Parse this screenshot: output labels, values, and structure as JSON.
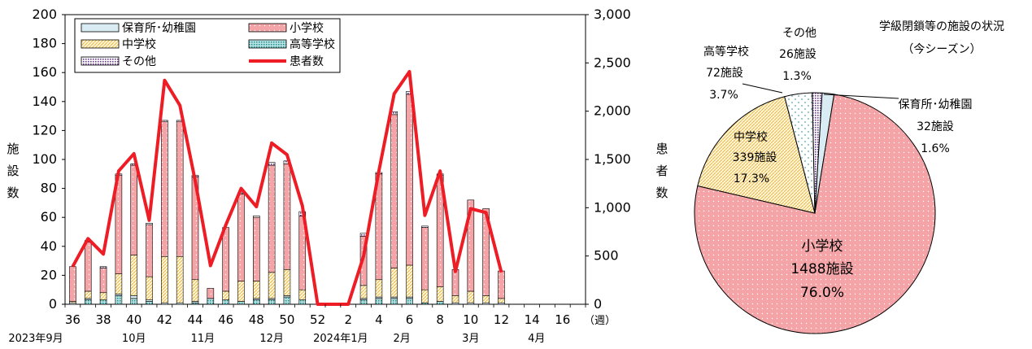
{
  "chart_data": [
    {
      "type": "bar",
      "stacked": true,
      "xlabel": "（週）",
      "ylabel": "施設数",
      "y2label": "患者数",
      "ylim": [
        0,
        200
      ],
      "y2lim": [
        0,
        3000
      ],
      "yticks": [
        "0",
        "20",
        "40",
        "60",
        "80",
        "100",
        "120",
        "140",
        "160",
        "180",
        "200"
      ],
      "y2ticks": [
        "0",
        "500",
        "1,000",
        "1,500",
        "2,000",
        "2,500",
        "3,000"
      ],
      "weeks": [
        36,
        37,
        38,
        39,
        40,
        41,
        42,
        43,
        44,
        45,
        46,
        47,
        48,
        49,
        50,
        51,
        52,
        1,
        2,
        3,
        4,
        5,
        6,
        7,
        8,
        9,
        10,
        11,
        12,
        13,
        14,
        15,
        16,
        17
      ],
      "week_tick_labels": [
        "36",
        "38",
        "40",
        "42",
        "44",
        "46",
        "48",
        "50",
        "52",
        "2",
        "4",
        "6",
        "8",
        "10",
        "12",
        "14",
        "16"
      ],
      "month_labels": [
        "2023年9月",
        "10月",
        "11月",
        "12月",
        "2024年1月",
        "2月",
        "3月",
        "4月"
      ],
      "legend": {
        "nursery": "保育所･幼稚園",
        "elementary": "小学校",
        "junior": "中学校",
        "high": "高等学校",
        "other": "その他",
        "patients": "患者数"
      },
      "series": [
        {
          "name": "保育所･幼稚園",
          "values": [
            1,
            1,
            0,
            1,
            2,
            1,
            1,
            1,
            1,
            0,
            0,
            0,
            1,
            1,
            1,
            0,
            0,
            0,
            0,
            1,
            1,
            1,
            1,
            0,
            0,
            1,
            1,
            1,
            1,
            0,
            0,
            0,
            0,
            0
          ]
        },
        {
          "name": "小学校",
          "values": [
            24,
            34,
            17,
            68,
            62,
            36,
            93,
            93,
            71,
            7,
            44,
            60,
            44,
            74,
            73,
            51,
            0,
            0,
            0,
            34,
            73,
            106,
            118,
            43,
            77,
            18,
            63,
            60,
            19,
            0,
            0,
            0,
            0,
            0
          ]
        },
        {
          "name": "中学校",
          "values": [
            1,
            5,
            5,
            14,
            28,
            16,
            32,
            32,
            15,
            0,
            6,
            14,
            12,
            18,
            18,
            7,
            0,
            0,
            0,
            9,
            12,
            20,
            22,
            9,
            10,
            5,
            8,
            5,
            3,
            0,
            0,
            0,
            0,
            0
          ]
        },
        {
          "name": "高等学校",
          "values": [
            0,
            3,
            3,
            6,
            4,
            2,
            0,
            0,
            1,
            4,
            3,
            2,
            3,
            3,
            5,
            3,
            0,
            0,
            0,
            3,
            4,
            4,
            4,
            1,
            2,
            0,
            0,
            0,
            0,
            0,
            0,
            0,
            0,
            0
          ]
        },
        {
          "name": "その他",
          "values": [
            0,
            1,
            1,
            1,
            1,
            1,
            1,
            1,
            1,
            0,
            0,
            1,
            1,
            2,
            2,
            3,
            0,
            0,
            0,
            2,
            1,
            2,
            2,
            1,
            1,
            0,
            0,
            0,
            0,
            0,
            0,
            0,
            0,
            0
          ]
        },
        {
          "name": "患者数",
          "axis": "right",
          "values": [
            390,
            680,
            520,
            1380,
            1560,
            870,
            2320,
            2060,
            1280,
            400,
            820,
            1200,
            1010,
            1670,
            1550,
            1020,
            0,
            0,
            0,
            500,
            1380,
            2180,
            2410,
            920,
            1380,
            340,
            990,
            950,
            330,
            null,
            null,
            null,
            null,
            null
          ]
        }
      ]
    },
    {
      "type": "pie",
      "title": "学級閉鎖等の施設の状況",
      "subtitle": "（今シーズン）",
      "slices": [
        {
          "name": "保育所･幼稚園",
          "count_label": "32施設",
          "percent_label": "1.6%",
          "percent": 1.6
        },
        {
          "name": "小学校",
          "count_label": "1488施設",
          "percent_label": "76.0%",
          "percent": 76.0
        },
        {
          "name": "中学校",
          "count_label": "339施設",
          "percent_label": "17.3%",
          "percent": 17.3
        },
        {
          "name": "高等学校",
          "count_label": "72施設",
          "percent_label": "3.7%",
          "percent": 3.7
        },
        {
          "name": "その他",
          "count_label": "26施設",
          "percent_label": "1.3%",
          "percent": 1.3
        }
      ]
    }
  ],
  "colors": {
    "elementary": "#f4a3a6",
    "junior": "#f3d28a",
    "high": "#1f8e8e",
    "other": "#6b3c8f",
    "nursery": "#d9ecf3",
    "patients": "#ee1c25"
  }
}
